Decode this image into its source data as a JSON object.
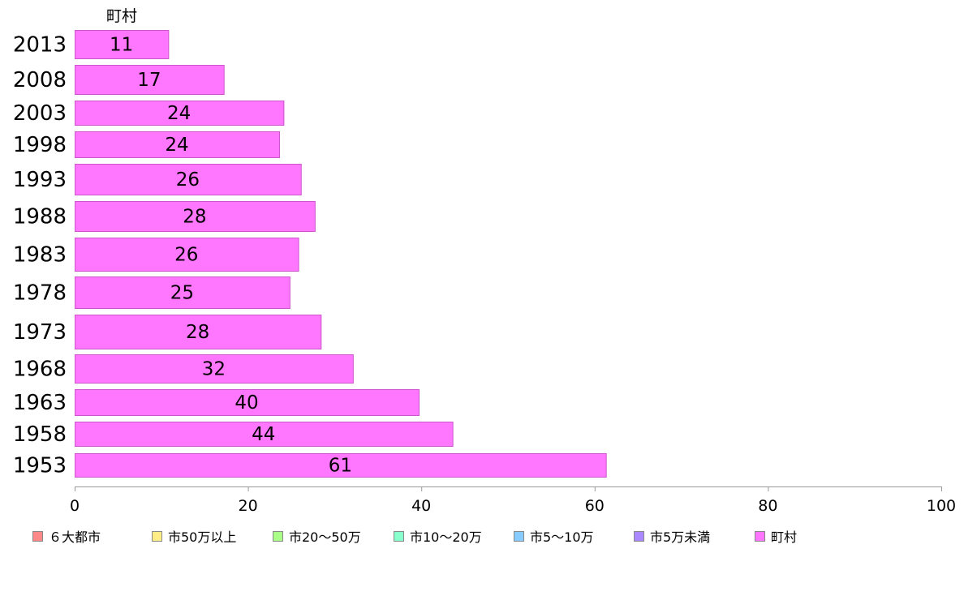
{
  "chart_data": {
    "type": "bar",
    "orientation": "horizontal",
    "series_header": "町村",
    "categories": [
      "2013",
      "2008",
      "2003",
      "1998",
      "1993",
      "1988",
      "1983",
      "1978",
      "1973",
      "1968",
      "1963",
      "1958",
      "1953"
    ],
    "values": [
      10.8,
      17.2,
      24.1,
      23.6,
      26.1,
      27.7,
      25.8,
      24.8,
      28.4,
      32.1,
      39.7,
      43.6,
      61.3
    ],
    "labels": [
      "11",
      "17",
      "24",
      "24",
      "26",
      "28",
      "26",
      "25",
      "28",
      "32",
      "40",
      "44",
      "61"
    ],
    "xlim": [
      0,
      100
    ],
    "x_ticks": [
      0,
      20,
      40,
      60,
      80,
      100
    ],
    "bar_color": "#ff77ff",
    "bar_stroke": "#cc55cc",
    "grid": false,
    "legend_position": "bottom",
    "legend": [
      {
        "name": "６大都市",
        "color": "#ff8888"
      },
      {
        "name": "市50万以上",
        "color": "#ffee88"
      },
      {
        "name": "市20〜50万",
        "color": "#aaff88"
      },
      {
        "name": "市10〜20万",
        "color": "#88ffcc"
      },
      {
        "name": "市5〜10万",
        "color": "#88ccff"
      },
      {
        "name": "市5万未満",
        "color": "#aa88ff"
      },
      {
        "name": "町村",
        "color": "#ff77ff"
      }
    ]
  }
}
